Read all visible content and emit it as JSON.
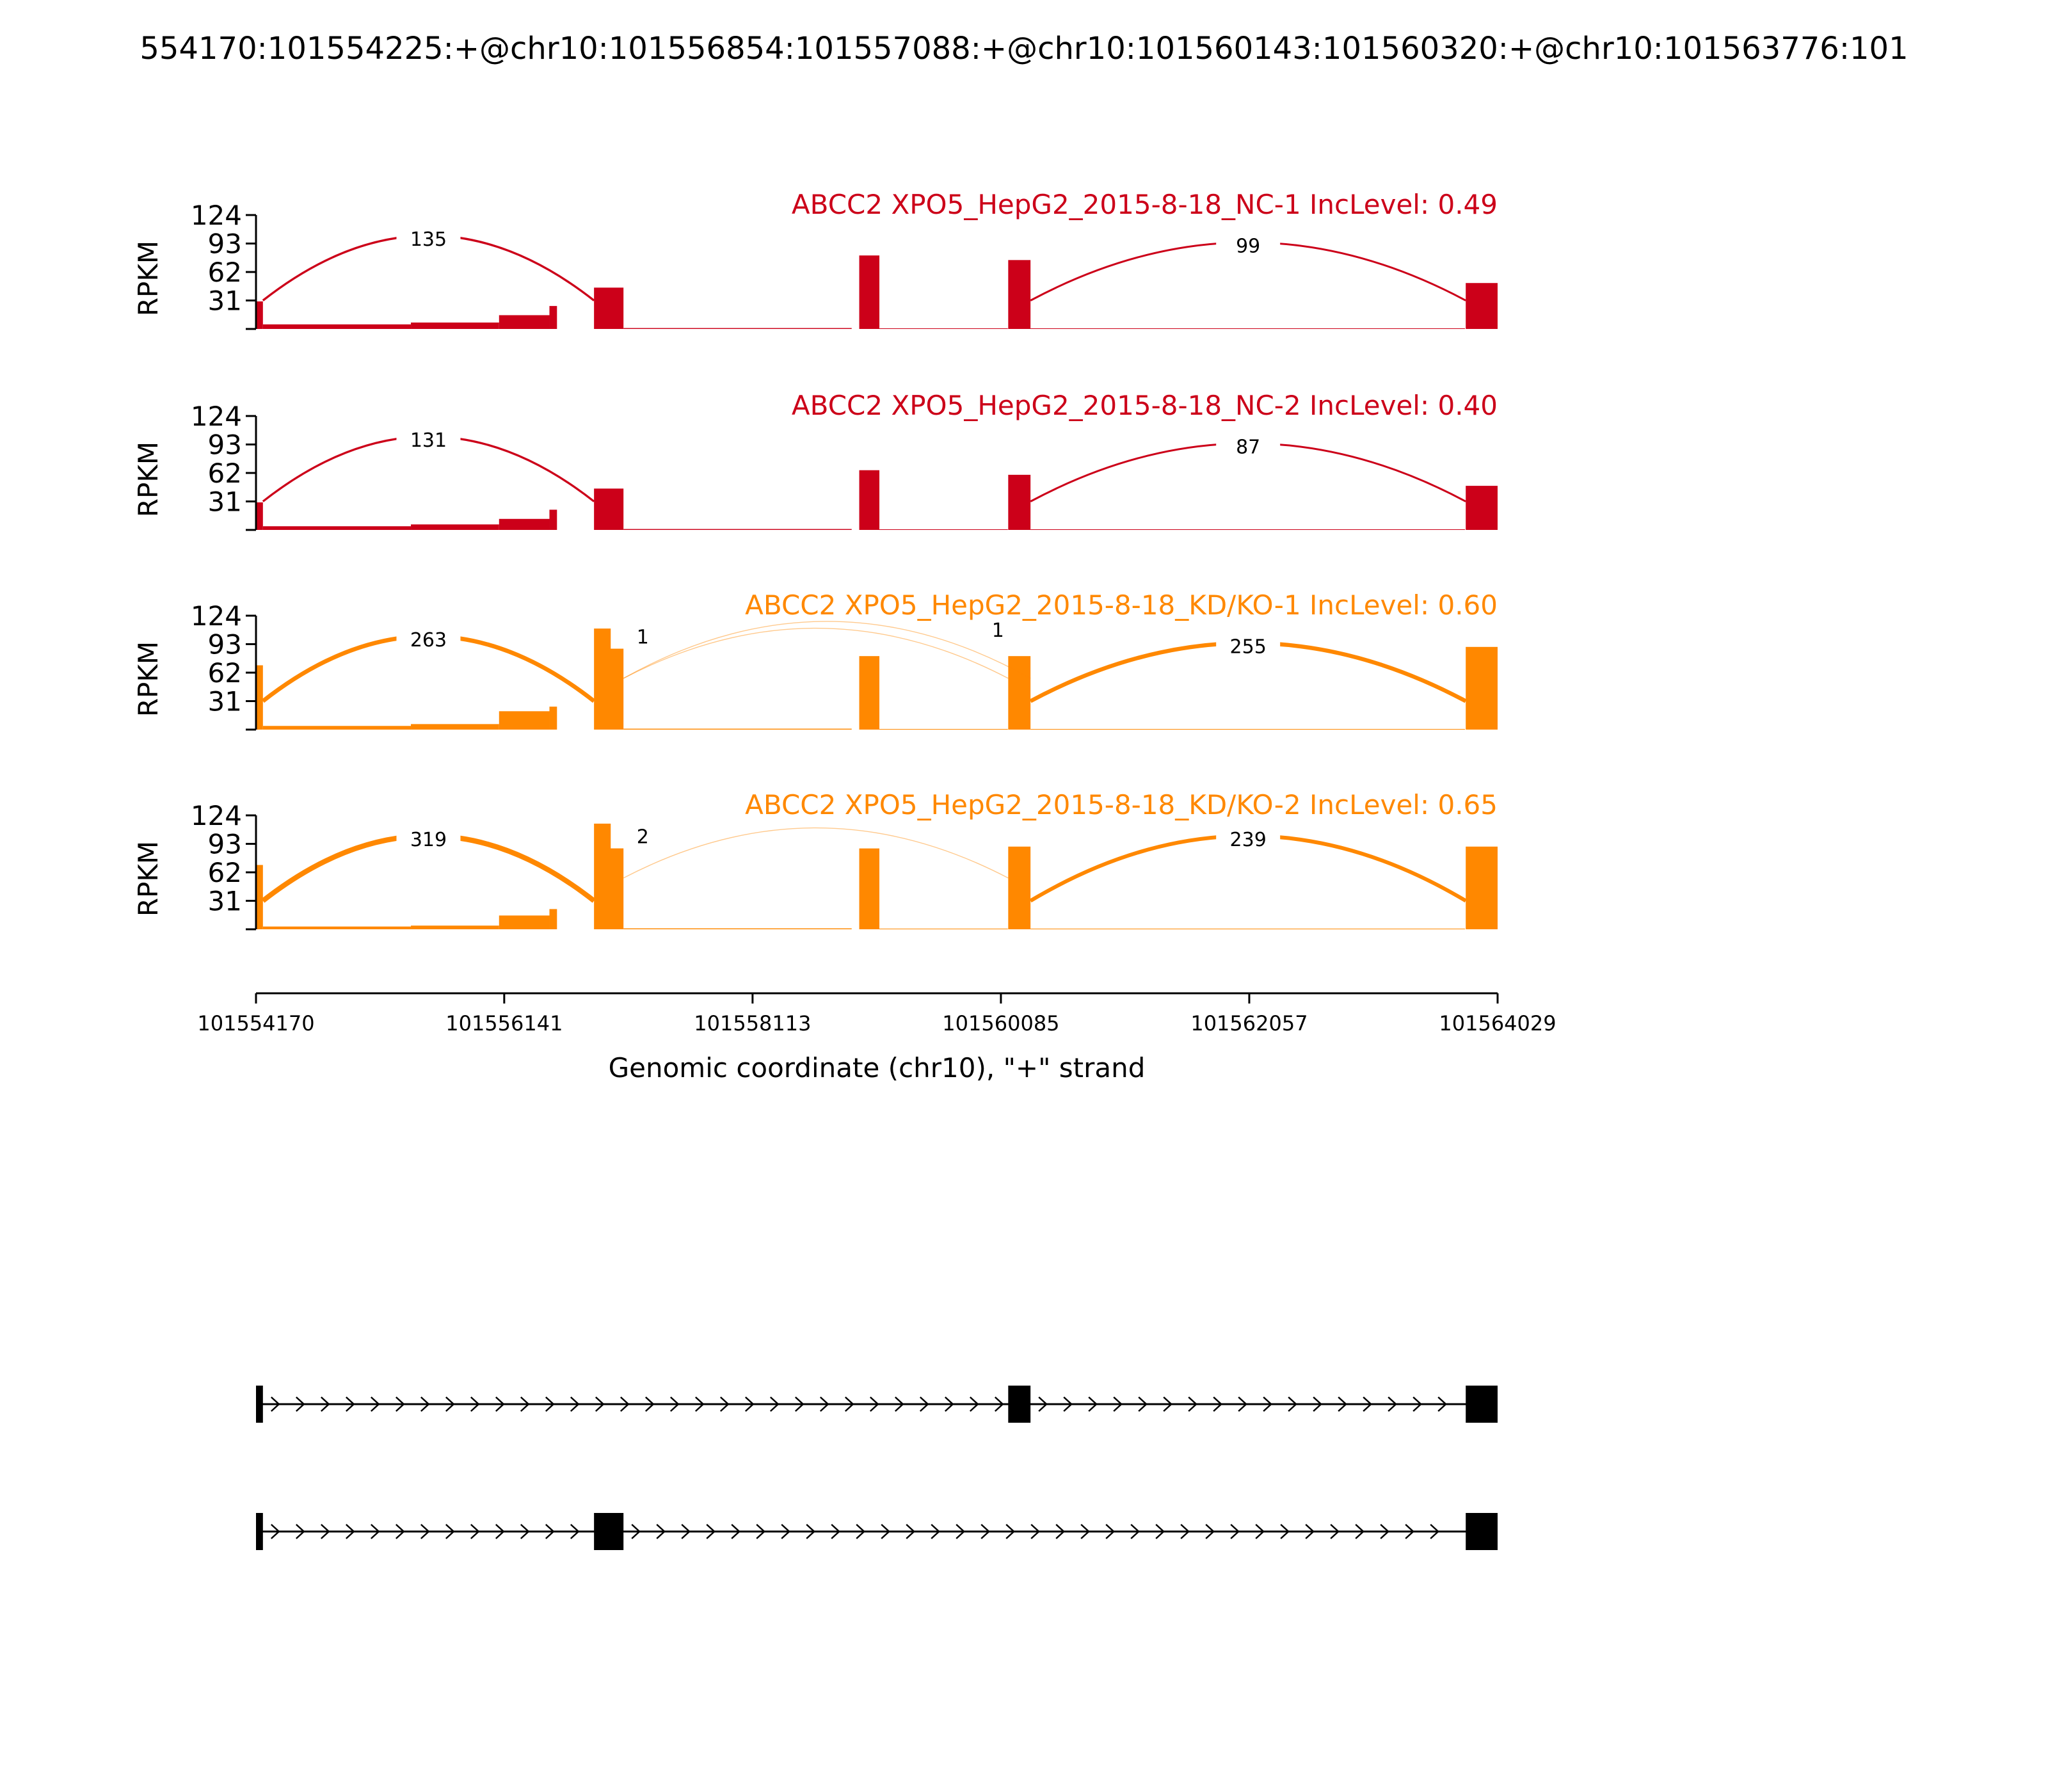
{
  "title": "554170:101554225:+@chr10:101556854:101557088:+@chr10:101560143:101560320:+@chr10:101563776:101",
  "colors": {
    "nc": "#cc0019",
    "kd": "#ff8800",
    "axis": "#000000",
    "label_bg": "#ffffff"
  },
  "chart_data": {
    "type": "area",
    "title": "554170:101554225:+@chr10:101556854:101557088:+@chr10:101560143:101560320:+@chr10:101563776:101",
    "ylabel": "RPKM",
    "xlabel": "Genomic coordinate (chr10), \"+\" strand",
    "xlim": [
      101554170,
      101564029
    ],
    "ylim": [
      0,
      124
    ],
    "yticks": [
      "124",
      "93",
      "62",
      "31"
    ],
    "xticks": [
      "101554170",
      "101556141",
      "101558113",
      "101560085",
      "101562057",
      "101564029"
    ],
    "xtick_values": [
      101554170,
      101556141,
      101558113,
      101560085,
      101562057,
      101564029
    ],
    "tracks": [
      {
        "label": "ABCC2 XPO5_HepG2_2015-8-18_NC-1 IncLevel: 0.49",
        "color_key": "nc",
        "exons": [
          {
            "start": 101554170,
            "end": 101554225,
            "level": 30
          },
          {
            "start": 101556854,
            "end": 101557088,
            "level": 45
          },
          {
            "start": 101558960,
            "end": 101559120,
            "level": 80
          },
          {
            "start": 101560143,
            "end": 101560320,
            "level": 75
          },
          {
            "start": 101563776,
            "end": 101564029,
            "level": 50
          }
        ],
        "background": [
          {
            "start": 101554225,
            "end": 101555400,
            "level": 5
          },
          {
            "start": 101555400,
            "end": 101556100,
            "level": 7
          },
          {
            "start": 101556100,
            "end": 101556500,
            "level": 15
          },
          {
            "start": 101556500,
            "end": 101556560,
            "level": 25
          },
          {
            "start": 101557088,
            "end": 101558900,
            "level": 1
          },
          {
            "start": 101559120,
            "end": 101560140,
            "level": 0.5
          },
          {
            "start": 101560320,
            "end": 101563770,
            "level": 0.5
          }
        ],
        "junctions": [
          {
            "start": 101554225,
            "end": 101556854,
            "count": "135"
          },
          {
            "start": 101560320,
            "end": 101563776,
            "count": "99"
          }
        ]
      },
      {
        "label": "ABCC2 XPO5_HepG2_2015-8-18_NC-2 IncLevel: 0.40",
        "color_key": "nc",
        "exons": [
          {
            "start": 101554170,
            "end": 101554225,
            "level": 30
          },
          {
            "start": 101556854,
            "end": 101557088,
            "level": 45
          },
          {
            "start": 101558960,
            "end": 101559120,
            "level": 65
          },
          {
            "start": 101560143,
            "end": 101560320,
            "level": 60
          },
          {
            "start": 101563776,
            "end": 101564029,
            "level": 48
          }
        ],
        "background": [
          {
            "start": 101554225,
            "end": 101555400,
            "level": 4
          },
          {
            "start": 101555400,
            "end": 101556100,
            "level": 6
          },
          {
            "start": 101556100,
            "end": 101556500,
            "level": 12
          },
          {
            "start": 101556500,
            "end": 101556560,
            "level": 22
          },
          {
            "start": 101557088,
            "end": 101558900,
            "level": 1
          },
          {
            "start": 101559120,
            "end": 101560140,
            "level": 0.5
          },
          {
            "start": 101560320,
            "end": 101563770,
            "level": 0.5
          }
        ],
        "junctions": [
          {
            "start": 101554225,
            "end": 101556854,
            "count": "131"
          },
          {
            "start": 101560320,
            "end": 101563776,
            "count": "87"
          }
        ]
      },
      {
        "label": "ABCC2 XPO5_HepG2_2015-8-18_KD/KO-1 IncLevel: 0.60",
        "color_key": "kd",
        "exons": [
          {
            "start": 101554170,
            "end": 101554225,
            "level": 70
          },
          {
            "start": 101556854,
            "end": 101557088,
            "level": 110
          },
          {
            "start": 101558960,
            "end": 101559120,
            "level": 80
          },
          {
            "start": 101560143,
            "end": 101560320,
            "level": 80
          },
          {
            "start": 101563776,
            "end": 101564029,
            "level": 90
          }
        ],
        "background": [
          {
            "start": 101554225,
            "end": 101555400,
            "level": 4
          },
          {
            "start": 101555400,
            "end": 101556100,
            "level": 6
          },
          {
            "start": 101556100,
            "end": 101556500,
            "level": 20
          },
          {
            "start": 101556500,
            "end": 101556560,
            "level": 25
          },
          {
            "start": 101557088,
            "end": 101558900,
            "level": 1
          },
          {
            "start": 101559120,
            "end": 101560140,
            "level": 0.5
          },
          {
            "start": 101560320,
            "end": 101563770,
            "level": 0.5
          }
        ],
        "junctions": [
          {
            "start": 101554225,
            "end": 101556854,
            "count": "263"
          },
          {
            "start": 101557088,
            "end": 101560143,
            "count": "1"
          },
          {
            "start": 101557088,
            "end": 101560320,
            "count": "1"
          },
          {
            "start": 101560320,
            "end": 101563776,
            "count": "255"
          }
        ]
      },
      {
        "label": "ABCC2 XPO5_HepG2_2015-8-18_KD/KO-2 IncLevel: 0.65",
        "color_key": "kd",
        "exons": [
          {
            "start": 101554170,
            "end": 101554225,
            "level": 70
          },
          {
            "start": 101556854,
            "end": 101557088,
            "level": 115
          },
          {
            "start": 101558960,
            "end": 101559120,
            "level": 88
          },
          {
            "start": 101560143,
            "end": 101560320,
            "level": 90
          },
          {
            "start": 101563776,
            "end": 101564029,
            "level": 90
          }
        ],
        "background": [
          {
            "start": 101554225,
            "end": 101555400,
            "level": 3
          },
          {
            "start": 101555400,
            "end": 101556100,
            "level": 4
          },
          {
            "start": 101556100,
            "end": 101556500,
            "level": 15
          },
          {
            "start": 101556500,
            "end": 101556560,
            "level": 22
          },
          {
            "start": 101557088,
            "end": 101558900,
            "level": 1
          },
          {
            "start": 101559120,
            "end": 101560140,
            "level": 0.5
          },
          {
            "start": 101560320,
            "end": 101563770,
            "level": 0.5
          }
        ],
        "junctions": [
          {
            "start": 101554225,
            "end": 101556854,
            "count": "319"
          },
          {
            "start": 101557088,
            "end": 101560143,
            "count": "2"
          },
          {
            "start": 101560320,
            "end": 101563776,
            "count": "239"
          }
        ]
      }
    ],
    "isoforms": [
      {
        "exons": [
          [
            101554170,
            101554225
          ],
          [
            101560143,
            101560320
          ],
          [
            101563776,
            101564029
          ]
        ]
      },
      {
        "exons": [
          [
            101554170,
            101554225
          ],
          [
            101556854,
            101557088
          ],
          [
            101563776,
            101564029
          ]
        ]
      }
    ]
  }
}
